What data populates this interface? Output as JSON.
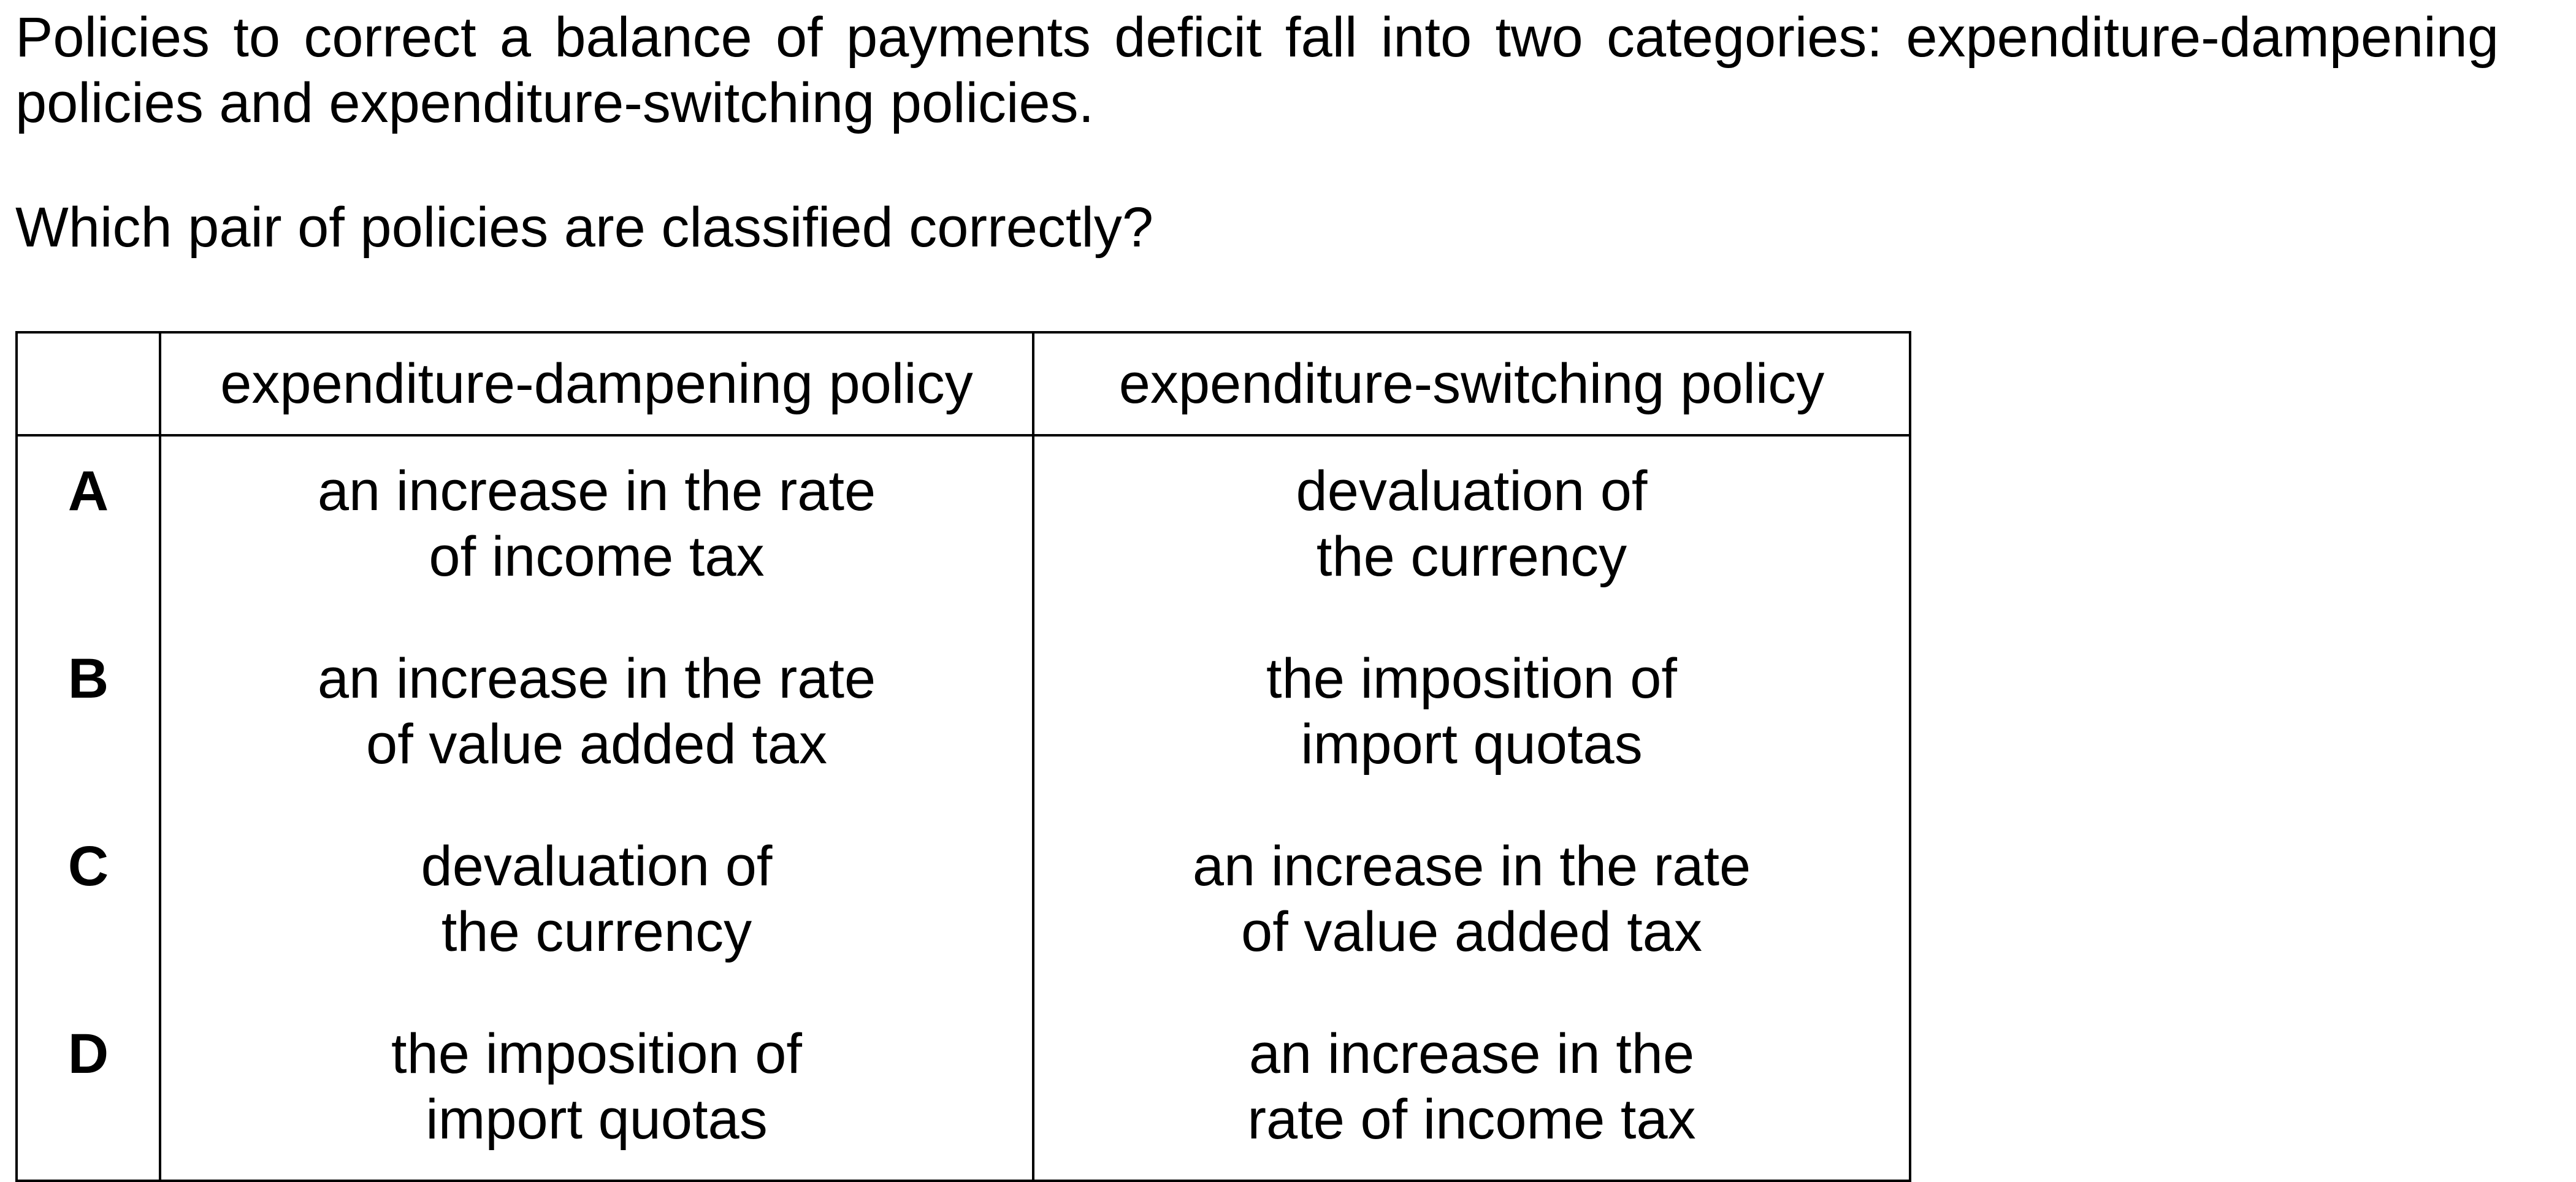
{
  "intro": "Policies to correct a balance of payments deficit fall into two categories: expenditure-dampening policies and expenditure-switching policies.",
  "question": "Which pair of policies are classified correctly?",
  "table": {
    "headers": [
      "",
      "expenditure-dampening policy",
      "expenditure-switching policy"
    ],
    "rows": [
      {
        "key": "A",
        "dampening": [
          "an increase in the rate",
          "of income tax"
        ],
        "switching": [
          "devaluation of",
          "the currency"
        ]
      },
      {
        "key": "B",
        "dampening": [
          "an increase in the rate",
          "of value added tax"
        ],
        "switching": [
          "the imposition of",
          "import quotas"
        ]
      },
      {
        "key": "C",
        "dampening": [
          "devaluation of",
          "the currency"
        ],
        "switching": [
          "an increase in the rate",
          "of value added tax"
        ]
      },
      {
        "key": "D",
        "dampening": [
          "the imposition of",
          "import quotas"
        ],
        "switching": [
          "an increase in the",
          "rate of income tax"
        ]
      }
    ]
  }
}
